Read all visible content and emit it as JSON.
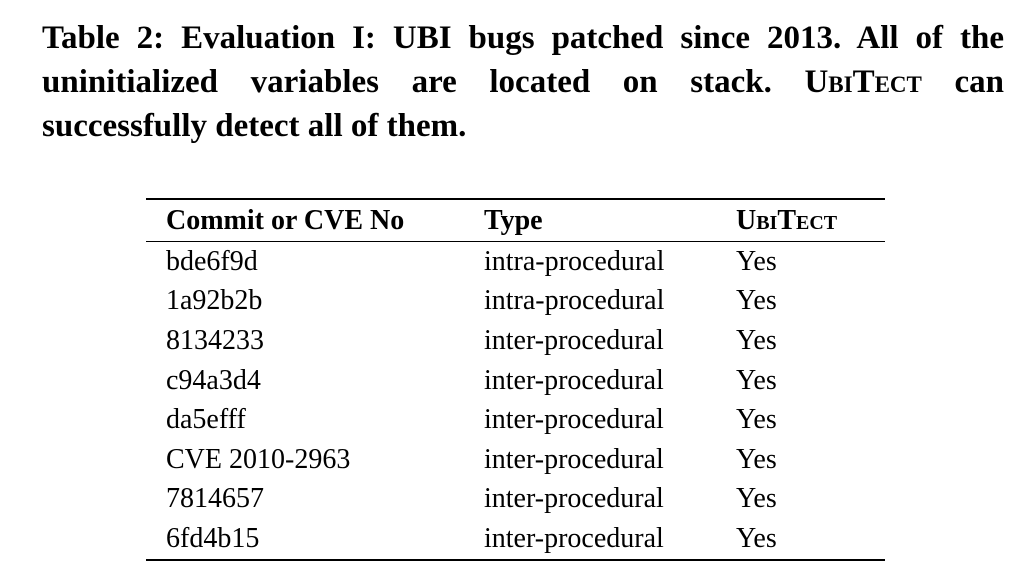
{
  "caption": {
    "text_before": "Table 2: Evaluation I: UBI bugs patched since 2013. All of the uninitialized variables are located on stack. ",
    "tool_name": "UbiTect",
    "text_after": " can successfully detect all of them."
  },
  "table": {
    "headers": [
      "Commit or CVE No",
      "Type",
      "UbiTect"
    ],
    "rows": [
      [
        "bde6f9d",
        "intra-procedural",
        "Yes"
      ],
      [
        "1a92b2b",
        "intra-procedural",
        "Yes"
      ],
      [
        "8134233",
        "inter-procedural",
        "Yes"
      ],
      [
        "c94a3d4",
        "inter-procedural",
        "Yes"
      ],
      [
        "da5efff",
        "inter-procedural",
        "Yes"
      ],
      [
        "CVE 2010-2963",
        "inter-procedural",
        "Yes"
      ],
      [
        "7814657",
        "inter-procedural",
        "Yes"
      ],
      [
        "6fd4b15",
        "inter-procedural",
        "Yes"
      ]
    ]
  }
}
